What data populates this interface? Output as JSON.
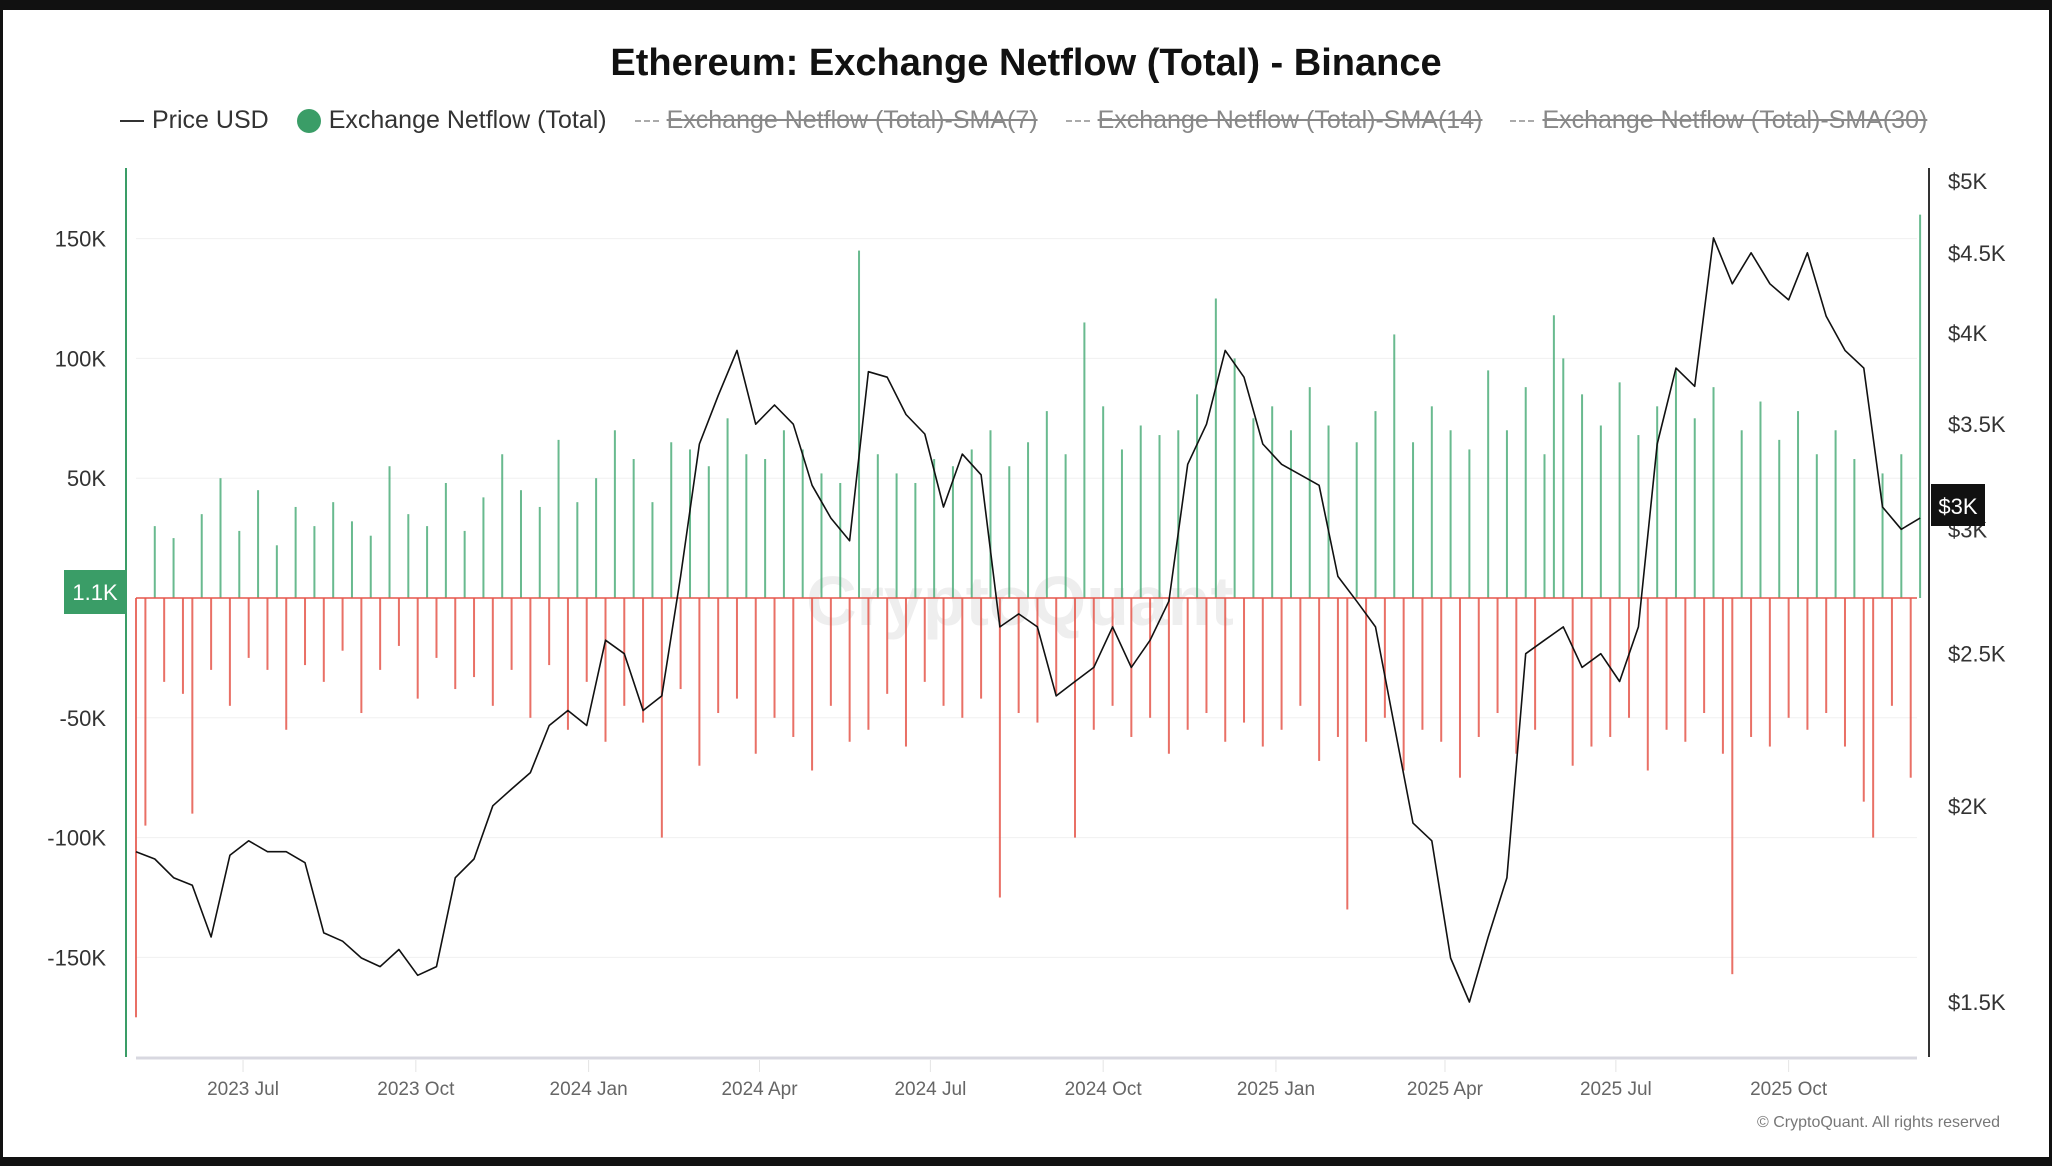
{
  "title": "Ethereum: Exchange Netflow (Total) - Binance",
  "legend": [
    {
      "label": "Price USD",
      "style": "line",
      "active": true
    },
    {
      "label": "Exchange Netflow (Total)",
      "style": "dot",
      "active": true
    },
    {
      "label": "Exchange Netflow (Total)-SMA(7)",
      "style": "dash",
      "active": false
    },
    {
      "label": "Exchange Netflow (Total)-SMA(14)",
      "style": "dash",
      "active": false
    },
    {
      "label": "Exchange Netflow (Total)-SMA(30)",
      "style": "dash",
      "active": false
    }
  ],
  "copyright": "© CryptoQuant. All rights reserved",
  "watermark": "CryptoQuant",
  "colors": {
    "positive": "#4fae7b",
    "negative": "#e5574b",
    "price": "#111111",
    "badge_left": "#3a9d67",
    "badge_right": "#111111"
  },
  "chart_data": {
    "type": "bar+line",
    "start_date": "2023-05-05",
    "left_axis": {
      "label": "Exchange Netflow (Total)",
      "ticks": [
        150,
        100,
        50,
        -50,
        -100,
        -150
      ],
      "tick_labels": [
        "150K",
        "100K",
        "50K",
        "-50K",
        "-100K",
        "-150K"
      ],
      "current_label": "1.1K",
      "unit": "K ETH"
    },
    "right_axis": {
      "scale": "log",
      "ticks": [
        5000,
        4500,
        4000,
        3500,
        3000,
        2500,
        2000,
        1500
      ],
      "tick_labels": [
        "$5K",
        "$4.5K",
        "$4K",
        "$3.5K",
        "$3K",
        "$2.5K",
        "$2K",
        "$1.5K"
      ],
      "current_label": "$3K"
    },
    "x_ticks": [
      {
        "date": "2023-07-01",
        "label": "2023 Jul"
      },
      {
        "date": "2023-10-01",
        "label": "2023 Oct"
      },
      {
        "date": "2024-01-01",
        "label": "2024 Jan"
      },
      {
        "date": "2024-04-01",
        "label": "2024 Apr"
      },
      {
        "date": "2024-07-01",
        "label": "2024 Jul"
      },
      {
        "date": "2024-10-01",
        "label": "2024 Oct"
      },
      {
        "date": "2025-01-01",
        "label": "2025 Jan"
      },
      {
        "date": "2025-04-01",
        "label": "2025 Apr"
      },
      {
        "date": "2025-07-01",
        "label": "2025 Jul"
      },
      {
        "date": "2025-10-01",
        "label": "2025 Oct"
      }
    ],
    "netflow_step_days": 5,
    "netflow_k": [
      -175,
      -95,
      30,
      -35,
      25,
      -40,
      -90,
      35,
      -30,
      50,
      -45,
      28,
      -25,
      45,
      -30,
      22,
      -55,
      38,
      -28,
      30,
      -35,
      40,
      -22,
      32,
      -48,
      26,
      -30,
      55,
      -20,
      35,
      -42,
      30,
      -25,
      48,
      -38,
      28,
      -33,
      42,
      -45,
      60,
      -30,
      45,
      -50,
      38,
      -28,
      66,
      -55,
      40,
      -35,
      50,
      -60,
      70,
      -45,
      58,
      -52,
      40,
      -100,
      65,
      -38,
      62,
      -70,
      55,
      -48,
      75,
      -42,
      60,
      -65,
      58,
      -50,
      70,
      -58,
      62,
      -72,
      52,
      -45,
      48,
      -60,
      145,
      -55,
      60,
      -40,
      52,
      -62,
      48,
      -35,
      58,
      -45,
      55,
      -50,
      62,
      -42,
      70,
      -125,
      55,
      -48,
      65,
      -52,
      78,
      -40,
      60,
      -100,
      115,
      -55,
      80,
      -45,
      62,
      -58,
      72,
      -50,
      68,
      -65,
      70,
      -55,
      85,
      -48,
      125,
      -60,
      100,
      -52,
      75,
      -62,
      80,
      -55,
      70,
      -45,
      88,
      -68,
      72,
      -58,
      -130,
      65,
      -60,
      78,
      -50,
      110,
      -72,
      65,
      -55,
      80,
      -60,
      70,
      -75,
      62,
      -58,
      95,
      -48,
      70,
      -65,
      88,
      -55,
      60,
      118,
      100,
      -70,
      85,
      -62,
      72,
      -58,
      90,
      -50,
      68,
      -72,
      80,
      -55,
      95,
      -60,
      75,
      -48,
      88,
      -65,
      -157,
      70,
      -58,
      82,
      -62,
      66,
      -50,
      78,
      -55,
      60,
      -48,
      70,
      -62,
      58,
      -85,
      -100,
      52,
      -45,
      60,
      -75,
      160
    ],
    "price_step_days": 10,
    "price_usd": [
      1870,
      1850,
      1800,
      1780,
      1650,
      1860,
      1900,
      1870,
      1870,
      1840,
      1660,
      1640,
      1600,
      1580,
      1620,
      1560,
      1580,
      1800,
      1850,
      2000,
      2050,
      2100,
      2250,
      2300,
      2250,
      2550,
      2500,
      2300,
      2350,
      2800,
      3400,
      3650,
      3900,
      3500,
      3600,
      3500,
      3200,
      3050,
      2950,
      3780,
      3750,
      3550,
      3450,
      3100,
      3350,
      3250,
      2600,
      2650,
      2600,
      2350,
      2400,
      2450,
      2600,
      2450,
      2550,
      2700,
      3300,
      3500,
      3900,
      3750,
      3400,
      3300,
      3250,
      3200,
      2800,
      2700,
      2600,
      2250,
      1950,
      1900,
      1600,
      1500,
      1650,
      1800,
      2500,
      2550,
      2600,
      2450,
      2500,
      2400,
      2600,
      3400,
      3800,
      3700,
      4600,
      4300,
      4500,
      4300,
      4200,
      4500,
      4100,
      3900,
      3800,
      3100,
      3000,
      3050
    ]
  }
}
